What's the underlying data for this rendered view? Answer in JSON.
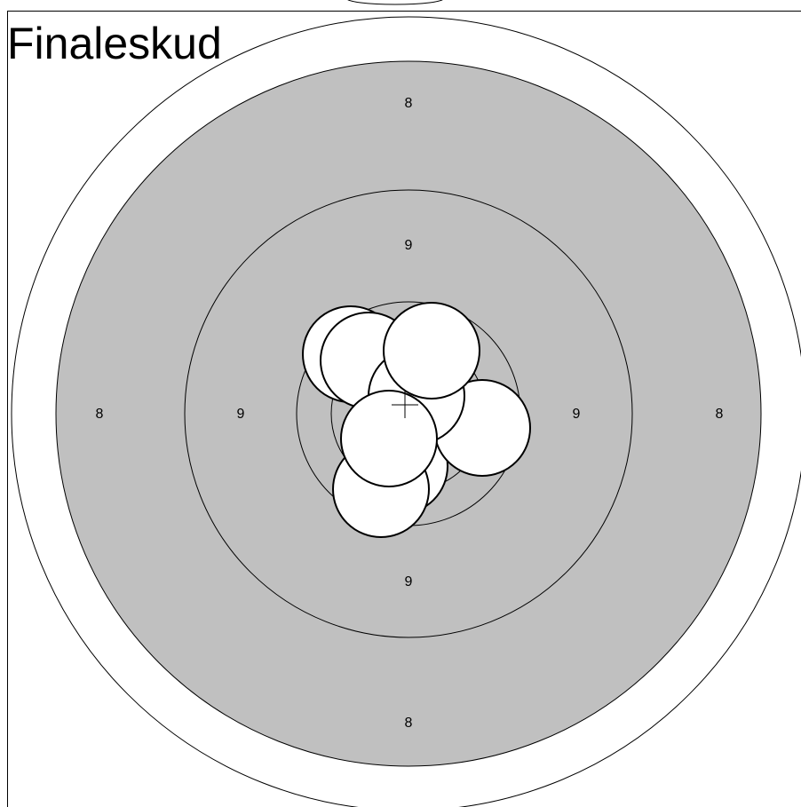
{
  "title": "Finaleskud",
  "ring_labels": {
    "top_8": "8",
    "bottom_8": "8",
    "left_8": "8",
    "right_8": "8",
    "top_9": "9",
    "bottom_9": "9",
    "left_9": "9",
    "right_9": "9"
  }
}
